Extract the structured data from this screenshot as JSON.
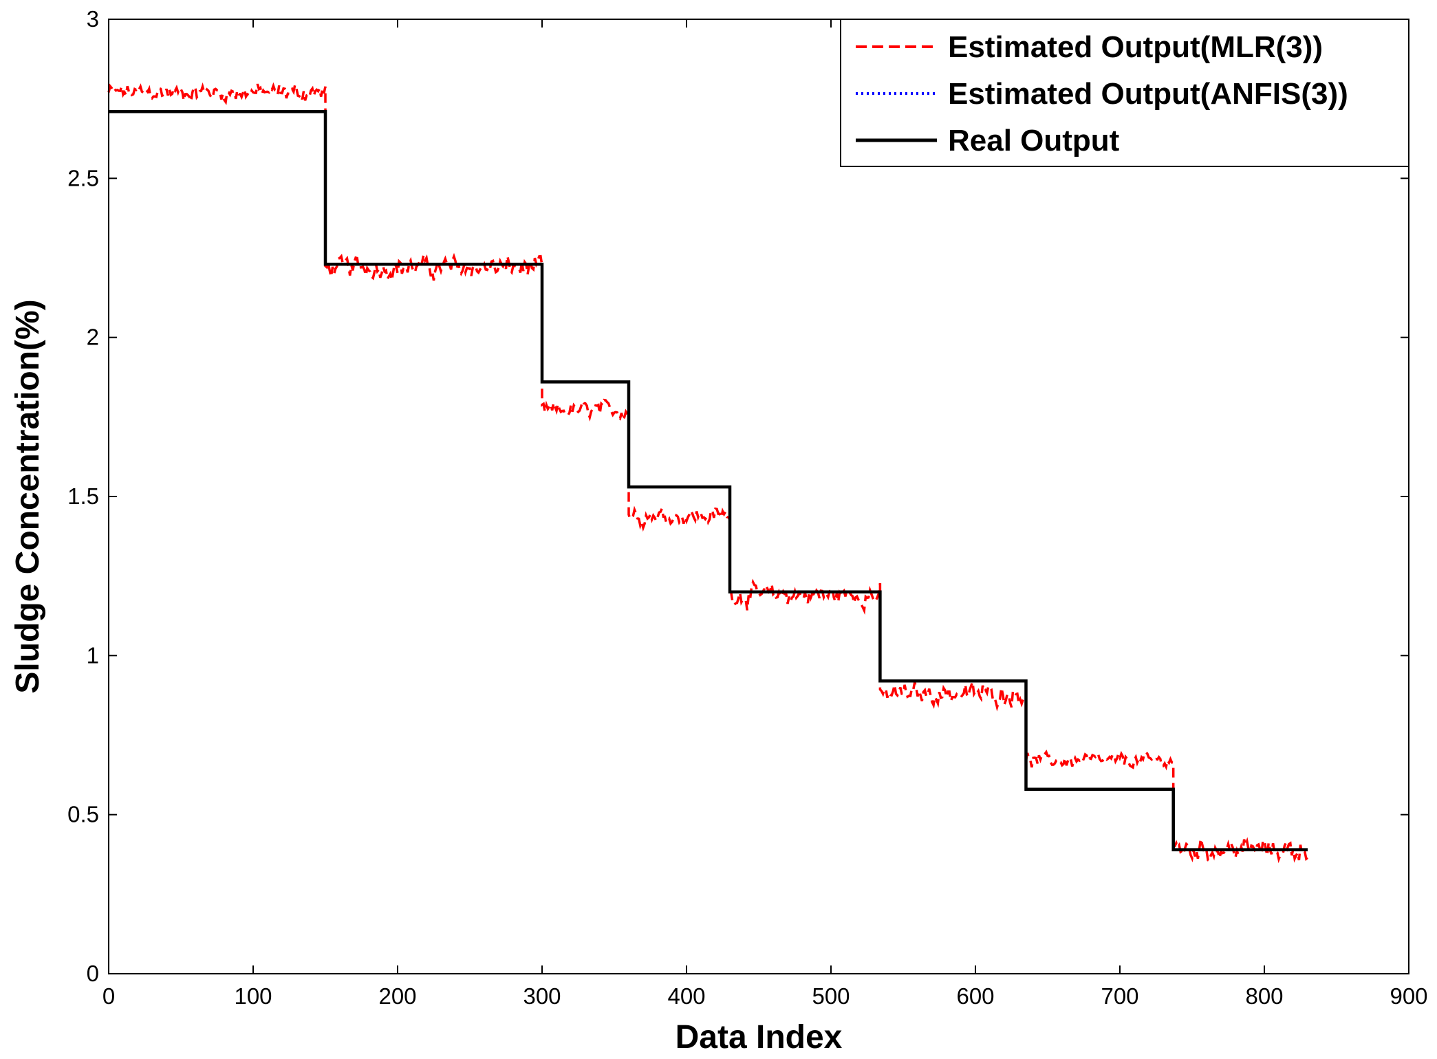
{
  "chart_data": {
    "type": "line",
    "xlabel": "Data Index",
    "ylabel": "Sludge Concentration(%)",
    "xlim": [
      0,
      900
    ],
    "ylim": [
      0,
      3
    ],
    "xticks": [
      0,
      100,
      200,
      300,
      400,
      500,
      600,
      700,
      800,
      900
    ],
    "yticks": [
      0,
      0.5,
      1,
      1.5,
      2,
      2.5,
      3
    ],
    "xtick_labels": [
      "0",
      "100",
      "200",
      "300",
      "400",
      "500",
      "600",
      "700",
      "800",
      "900"
    ],
    "ytick_labels": [
      "0",
      "0.5",
      "1",
      "1.5",
      "2",
      "2.5",
      "3"
    ],
    "grid": false,
    "legend_position": "top-right",
    "series": [
      {
        "name": "Estimated Output(MLR(3))",
        "color": "#ff0000",
        "style": "dashed",
        "segments": [
          {
            "x": [
              0,
              150
            ],
            "mean": 2.77,
            "noise": 0.025
          },
          {
            "x": [
              150,
              300
            ],
            "mean": 2.22,
            "noise": 0.03
          },
          {
            "x": [
              300,
              360
            ],
            "mean": 1.77,
            "noise": 0.025
          },
          {
            "x": [
              360,
              430
            ],
            "mean": 1.44,
            "noise": 0.025
          },
          {
            "x": [
              430,
              534
            ],
            "mean": 1.19,
            "noise": 0.03
          },
          {
            "x": [
              534,
              635
            ],
            "mean": 0.88,
            "noise": 0.03
          },
          {
            "x": [
              635,
              737
            ],
            "mean": 0.67,
            "noise": 0.02
          },
          {
            "x": [
              737,
              830
            ],
            "mean": 0.39,
            "noise": 0.03
          }
        ]
      },
      {
        "name": "Estimated Output(ANFIS(3))",
        "color": "#0000ff",
        "style": "dotted",
        "segments": [
          {
            "x": [
              0,
              150
            ],
            "mean": 2.71
          },
          {
            "x": [
              150,
              300
            ],
            "mean": 2.23
          },
          {
            "x": [
              300,
              360
            ],
            "mean": 1.86
          },
          {
            "x": [
              360,
              430
            ],
            "mean": 1.53
          },
          {
            "x": [
              430,
              534
            ],
            "mean": 1.2
          },
          {
            "x": [
              534,
              635
            ],
            "mean": 0.92
          },
          {
            "x": [
              635,
              737
            ],
            "mean": 0.58
          },
          {
            "x": [
              737,
              830
            ],
            "mean": 0.39
          }
        ]
      },
      {
        "name": "Real Output",
        "color": "#000000",
        "style": "solid",
        "steps": [
          {
            "x": [
              0,
              150
            ],
            "y": 2.71
          },
          {
            "x": [
              150,
              300
            ],
            "y": 2.23
          },
          {
            "x": [
              300,
              360
            ],
            "y": 1.86
          },
          {
            "x": [
              360,
              430
            ],
            "y": 1.53
          },
          {
            "x": [
              430,
              534
            ],
            "y": 1.2
          },
          {
            "x": [
              534,
              635
            ],
            "y": 0.92
          },
          {
            "x": [
              635,
              737
            ],
            "y": 0.58
          },
          {
            "x": [
              737,
              830
            ],
            "y": 0.39
          }
        ]
      }
    ]
  }
}
